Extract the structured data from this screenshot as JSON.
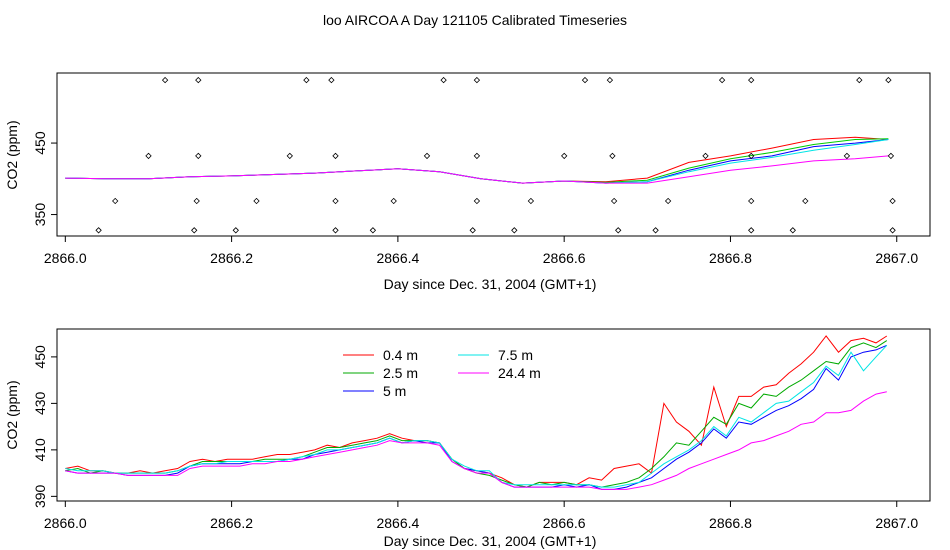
{
  "figure": {
    "title": "loo AIRCOA A  Day 121105  Calibrated Timeseries"
  },
  "chart_data": [
    {
      "type": "line",
      "title": "",
      "xlabel": "Day since Dec. 31, 2004 (GMT+1)",
      "ylabel": "CO2 (ppm)",
      "xlim": [
        2865.99,
        2867.04
      ],
      "ylim": [
        320,
        548
      ],
      "xticks": [
        "2866.0",
        "2866.2",
        "2866.4",
        "2866.6",
        "2866.8",
        "2867.0"
      ],
      "yticks": [
        "350",
        "450"
      ],
      "grid": false,
      "legend": "none",
      "x": [
        2866.0,
        2866.05,
        2866.1,
        2866.15,
        2866.2,
        2866.25,
        2866.3,
        2866.35,
        2866.4,
        2866.45,
        2866.5,
        2866.55,
        2866.6,
        2866.65,
        2866.7,
        2866.75,
        2866.8,
        2866.85,
        2866.9,
        2866.95,
        2866.99
      ],
      "series": [
        {
          "color": "#ff0000",
          "values": [
            401,
            400,
            400,
            403,
            404,
            406,
            408,
            411,
            414,
            410,
            400,
            394,
            397,
            396,
            401,
            423,
            432,
            443,
            455,
            458,
            455
          ]
        },
        {
          "color": "#00cc00",
          "values": [
            401,
            400,
            400,
            403,
            404,
            406,
            408,
            411,
            414,
            410,
            400,
            394,
            397,
            395,
            398,
            415,
            428,
            437,
            448,
            455,
            456
          ]
        },
        {
          "color": "#0000ff",
          "values": [
            401,
            400,
            400,
            403,
            404,
            406,
            408,
            411,
            414,
            410,
            400,
            394,
            397,
            394,
            396,
            412,
            425,
            432,
            445,
            450,
            455
          ]
        },
        {
          "color": "#00e5e5",
          "values": [
            401,
            400,
            400,
            403,
            404,
            406,
            408,
            411,
            414,
            410,
            400,
            394,
            397,
            394,
            396,
            410,
            422,
            430,
            440,
            448,
            455
          ]
        },
        {
          "color": "#ff00ff",
          "values": [
            401,
            400,
            400,
            403,
            404,
            406,
            408,
            411,
            414,
            410,
            400,
            394,
            397,
            394,
            394,
            403,
            412,
            418,
            425,
            428,
            432
          ]
        }
      ],
      "markers": [
        [
          2866.04,
          328
        ],
        [
          2866.06,
          369
        ],
        [
          2866.1,
          432
        ],
        [
          2866.12,
          538
        ],
        [
          2866.155,
          328
        ],
        [
          2866.158,
          369
        ],
        [
          2866.16,
          432
        ],
        [
          2866.16,
          538
        ],
        [
          2866.205,
          328
        ],
        [
          2866.23,
          369
        ],
        [
          2866.27,
          432
        ],
        [
          2866.29,
          538
        ],
        [
          2866.32,
          538
        ],
        [
          2866.325,
          432
        ],
        [
          2866.325,
          369
        ],
        [
          2866.325,
          328
        ],
        [
          2866.37,
          328
        ],
        [
          2866.395,
          369
        ],
        [
          2866.435,
          432
        ],
        [
          2866.455,
          538
        ],
        [
          2866.49,
          328
        ],
        [
          2866.495,
          369
        ],
        [
          2866.495,
          432
        ],
        [
          2866.495,
          538
        ],
        [
          2866.54,
          328
        ],
        [
          2866.56,
          369
        ],
        [
          2866.6,
          432
        ],
        [
          2866.625,
          538
        ],
        [
          2866.655,
          538
        ],
        [
          2866.658,
          432
        ],
        [
          2866.66,
          369
        ],
        [
          2866.665,
          328
        ],
        [
          2866.71,
          328
        ],
        [
          2866.725,
          369
        ],
        [
          2866.77,
          432
        ],
        [
          2866.79,
          538
        ],
        [
          2866.825,
          538
        ],
        [
          2866.825,
          432
        ],
        [
          2866.825,
          369
        ],
        [
          2866.825,
          328
        ],
        [
          2866.875,
          328
        ],
        [
          2866.89,
          369
        ],
        [
          2866.94,
          432
        ],
        [
          2866.955,
          538
        ],
        [
          2866.99,
          538
        ],
        [
          2866.993,
          432
        ],
        [
          2866.995,
          369
        ],
        [
          2866.995,
          328
        ]
      ]
    },
    {
      "type": "line",
      "title": "",
      "xlabel": "Day since Dec. 31, 2004 (GMT+1)",
      "ylabel": "CO2 (ppm)",
      "xlim": [
        2865.99,
        2867.04
      ],
      "ylim": [
        388,
        462
      ],
      "xticks": [
        "2866.0",
        "2866.2",
        "2866.4",
        "2866.6",
        "2866.8",
        "2867.0"
      ],
      "yticks": [
        "390",
        "410",
        "430",
        "450"
      ],
      "grid": false,
      "legend": "top-left",
      "x": [
        2866.0,
        2866.015,
        2866.03,
        2866.045,
        2866.06,
        2866.075,
        2866.09,
        2866.105,
        2866.12,
        2866.135,
        2866.15,
        2866.165,
        2866.18,
        2866.195,
        2866.21,
        2866.225,
        2866.24,
        2866.255,
        2866.27,
        2866.285,
        2866.3,
        2866.315,
        2866.33,
        2866.345,
        2866.36,
        2866.375,
        2866.39,
        2866.405,
        2866.42,
        2866.435,
        2866.45,
        2866.465,
        2866.48,
        2866.495,
        2866.51,
        2866.525,
        2866.54,
        2866.555,
        2866.57,
        2866.585,
        2866.6,
        2866.615,
        2866.63,
        2866.645,
        2866.66,
        2866.675,
        2866.69,
        2866.705,
        2866.72,
        2866.735,
        2866.75,
        2866.765,
        2866.78,
        2866.795,
        2866.81,
        2866.825,
        2866.84,
        2866.855,
        2866.87,
        2866.885,
        2866.9,
        2866.915,
        2866.93,
        2866.945,
        2866.96,
        2866.975,
        2866.988
      ],
      "series": [
        {
          "name": "0.4 m",
          "color": "#ff0000",
          "values": [
            402,
            403,
            401,
            401,
            400,
            400,
            401,
            400,
            401,
            402,
            405,
            406,
            405,
            406,
            406,
            406,
            407,
            408,
            408,
            409,
            410,
            412,
            411,
            413,
            414,
            415,
            417,
            415,
            414,
            414,
            413,
            406,
            402,
            401,
            400,
            398,
            395,
            394,
            396,
            396,
            396,
            395,
            398,
            397,
            402,
            403,
            404,
            400,
            430,
            422,
            418,
            412,
            437,
            420,
            433,
            433,
            437,
            438,
            443,
            447,
            452,
            459,
            452,
            457,
            458,
            456,
            459
          ]
        },
        {
          "name": "2.5 m",
          "color": "#00aa00",
          "values": [
            401,
            402,
            400,
            401,
            400,
            400,
            400,
            400,
            400,
            401,
            403,
            405,
            405,
            405,
            405,
            405,
            406,
            406,
            406,
            407,
            409,
            411,
            411,
            412,
            413,
            414,
            416,
            414,
            414,
            414,
            413,
            406,
            402,
            400,
            399,
            397,
            395,
            394,
            396,
            395,
            396,
            395,
            395,
            394,
            395,
            396,
            398,
            402,
            407,
            413,
            412,
            418,
            424,
            421,
            430,
            428,
            434,
            433,
            437,
            440,
            444,
            448,
            447,
            454,
            456,
            454,
            457
          ]
        },
        {
          "name": "5 m",
          "color": "#0000ff",
          "values": [
            401,
            400,
            400,
            400,
            400,
            399,
            399,
            399,
            399,
            400,
            403,
            404,
            404,
            404,
            404,
            405,
            405,
            405,
            406,
            406,
            408,
            409,
            410,
            411,
            412,
            413,
            415,
            413,
            414,
            413,
            413,
            405,
            402,
            401,
            400,
            396,
            394,
            394,
            394,
            394,
            395,
            394,
            395,
            393,
            393,
            394,
            396,
            398,
            402,
            406,
            409,
            413,
            419,
            415,
            422,
            421,
            424,
            427,
            429,
            432,
            436,
            445,
            440,
            450,
            452,
            453,
            455
          ]
        },
        {
          "name": "7.5 m",
          "color": "#00e5e5",
          "values": [
            402,
            401,
            401,
            401,
            400,
            400,
            400,
            400,
            400,
            401,
            403,
            404,
            404,
            405,
            405,
            405,
            405,
            405,
            406,
            407,
            408,
            410,
            410,
            411,
            412,
            413,
            415,
            413,
            414,
            414,
            413,
            406,
            403,
            401,
            401,
            396,
            395,
            395,
            395,
            395,
            395,
            395,
            395,
            394,
            394,
            395,
            396,
            400,
            404,
            407,
            410,
            414,
            420,
            416,
            424,
            422,
            426,
            430,
            431,
            435,
            439,
            446,
            442,
            452,
            444,
            450,
            455
          ]
        },
        {
          "name": "24.4 m",
          "color": "#ff00ff",
          "values": [
            401,
            400,
            400,
            400,
            400,
            399,
            399,
            399,
            399,
            399,
            402,
            403,
            403,
            403,
            403,
            404,
            404,
            405,
            405,
            406,
            407,
            408,
            409,
            410,
            411,
            412,
            414,
            413,
            413,
            413,
            412,
            405,
            402,
            400,
            400,
            396,
            394,
            394,
            394,
            394,
            394,
            394,
            394,
            393,
            393,
            393,
            394,
            395,
            397,
            399,
            402,
            404,
            406,
            408,
            410,
            413,
            414,
            416,
            418,
            421,
            422,
            426,
            426,
            427,
            431,
            434,
            435
          ]
        }
      ]
    }
  ]
}
